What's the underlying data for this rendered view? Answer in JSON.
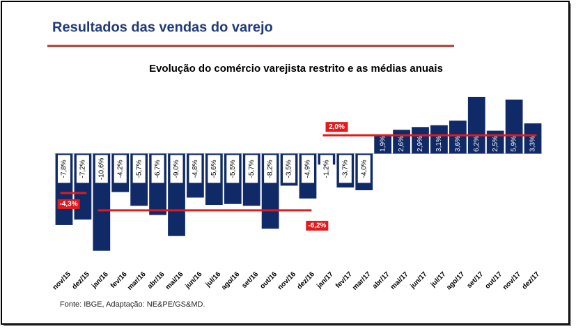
{
  "header": {
    "title": "Resultados das vendas do varejo"
  },
  "chart_data": {
    "type": "bar",
    "title": "Evolução do comércio varejista restrito e as médias anuais",
    "categories": [
      "nov/15",
      "dez/15",
      "jan/16",
      "fev/16",
      "mar/16",
      "abr/16",
      "mai/16",
      "jun/16",
      "jul/16",
      "ago/16",
      "set/16",
      "out/16",
      "nov/16",
      "dez/16",
      "jan/17",
      "fev/17",
      "mar/17",
      "abr/17",
      "mai/17",
      "jun/17",
      "jul/17",
      "ago/17",
      "set/17",
      "out/17",
      "nov/17",
      "dez/17"
    ],
    "values": [
      -7.8,
      -7.2,
      -10.6,
      -4.2,
      -5.7,
      -6.7,
      -9.0,
      -4.8,
      -5.6,
      -5.5,
      -5.7,
      -8.2,
      -3.5,
      -4.9,
      -1.2,
      -3.7,
      -4.0,
      1.9,
      2.6,
      2.9,
      3.1,
      3.6,
      6.2,
      2.5,
      5.9,
      3.3
    ],
    "value_labels": [
      "-7,8%",
      "-7,2%",
      "-10,6%",
      "-4,2%",
      "-5,7%",
      "-6,7%",
      "-9,0%",
      "-4,8%",
      "-5,6%",
      "-5,5%",
      "-5,7%",
      "-8,2%",
      "-3,5%",
      "-4,9%",
      "-1,2%",
      "-3,7%",
      "-4,0%",
      "1,9%",
      "2,6%",
      "2,9%",
      "3,1%",
      "3,6%",
      "6,2%",
      "2,5%",
      "5,9%",
      "3,3%"
    ],
    "color": "#0f2a66",
    "ylim": [
      -11,
      6.5
    ],
    "averages": [
      {
        "start": "nov/15",
        "end": "dez/15",
        "value": -4.3,
        "label": "-4,3%"
      },
      {
        "start": "jan/16",
        "end": "dez/16",
        "value": -6.2,
        "label": "-6,2%"
      },
      {
        "start": "jan/17",
        "end": "dez/17",
        "value": 2.0,
        "label": "2,0%"
      }
    ],
    "average_color": "#e3191b",
    "source": "Fonte: IBGE, Adaptação: NE&PE/GS&MD."
  }
}
